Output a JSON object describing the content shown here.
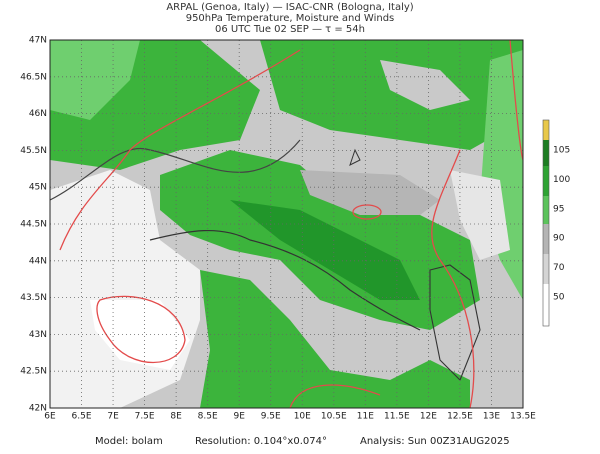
{
  "header": {
    "line1": "ARPAL (Genoa, Italy)  —  ISAC-CNR (Bologna, Italy)",
    "line2": "950hPa Temperature, Moisture and Winds",
    "line3": "06 UTC Tue 02 SEP  —  τ = 54h"
  },
  "map": {
    "xticks": [
      "6E",
      "6.5E",
      "7E",
      "7.5E",
      "8E",
      "8.5E",
      "9E",
      "9.5E",
      "10E",
      "10.5E",
      "11E",
      "11.5E",
      "12E",
      "12.5E",
      "13E",
      "13.5E"
    ],
    "yticks": [
      "47N",
      "46.5N",
      "46N",
      "45.5N",
      "45N",
      "44.5N",
      "44N",
      "43.5N",
      "43N",
      "42.5N",
      "42N"
    ]
  },
  "colorbar": {
    "ticks": [
      50,
      70,
      90,
      95,
      100,
      105
    ]
  },
  "footer": {
    "model": "Model: bolam",
    "resolution": "Resolution: 0.104°x0.074°",
    "analysis": "Analysis: Sun 00Z31AUG2025"
  }
}
